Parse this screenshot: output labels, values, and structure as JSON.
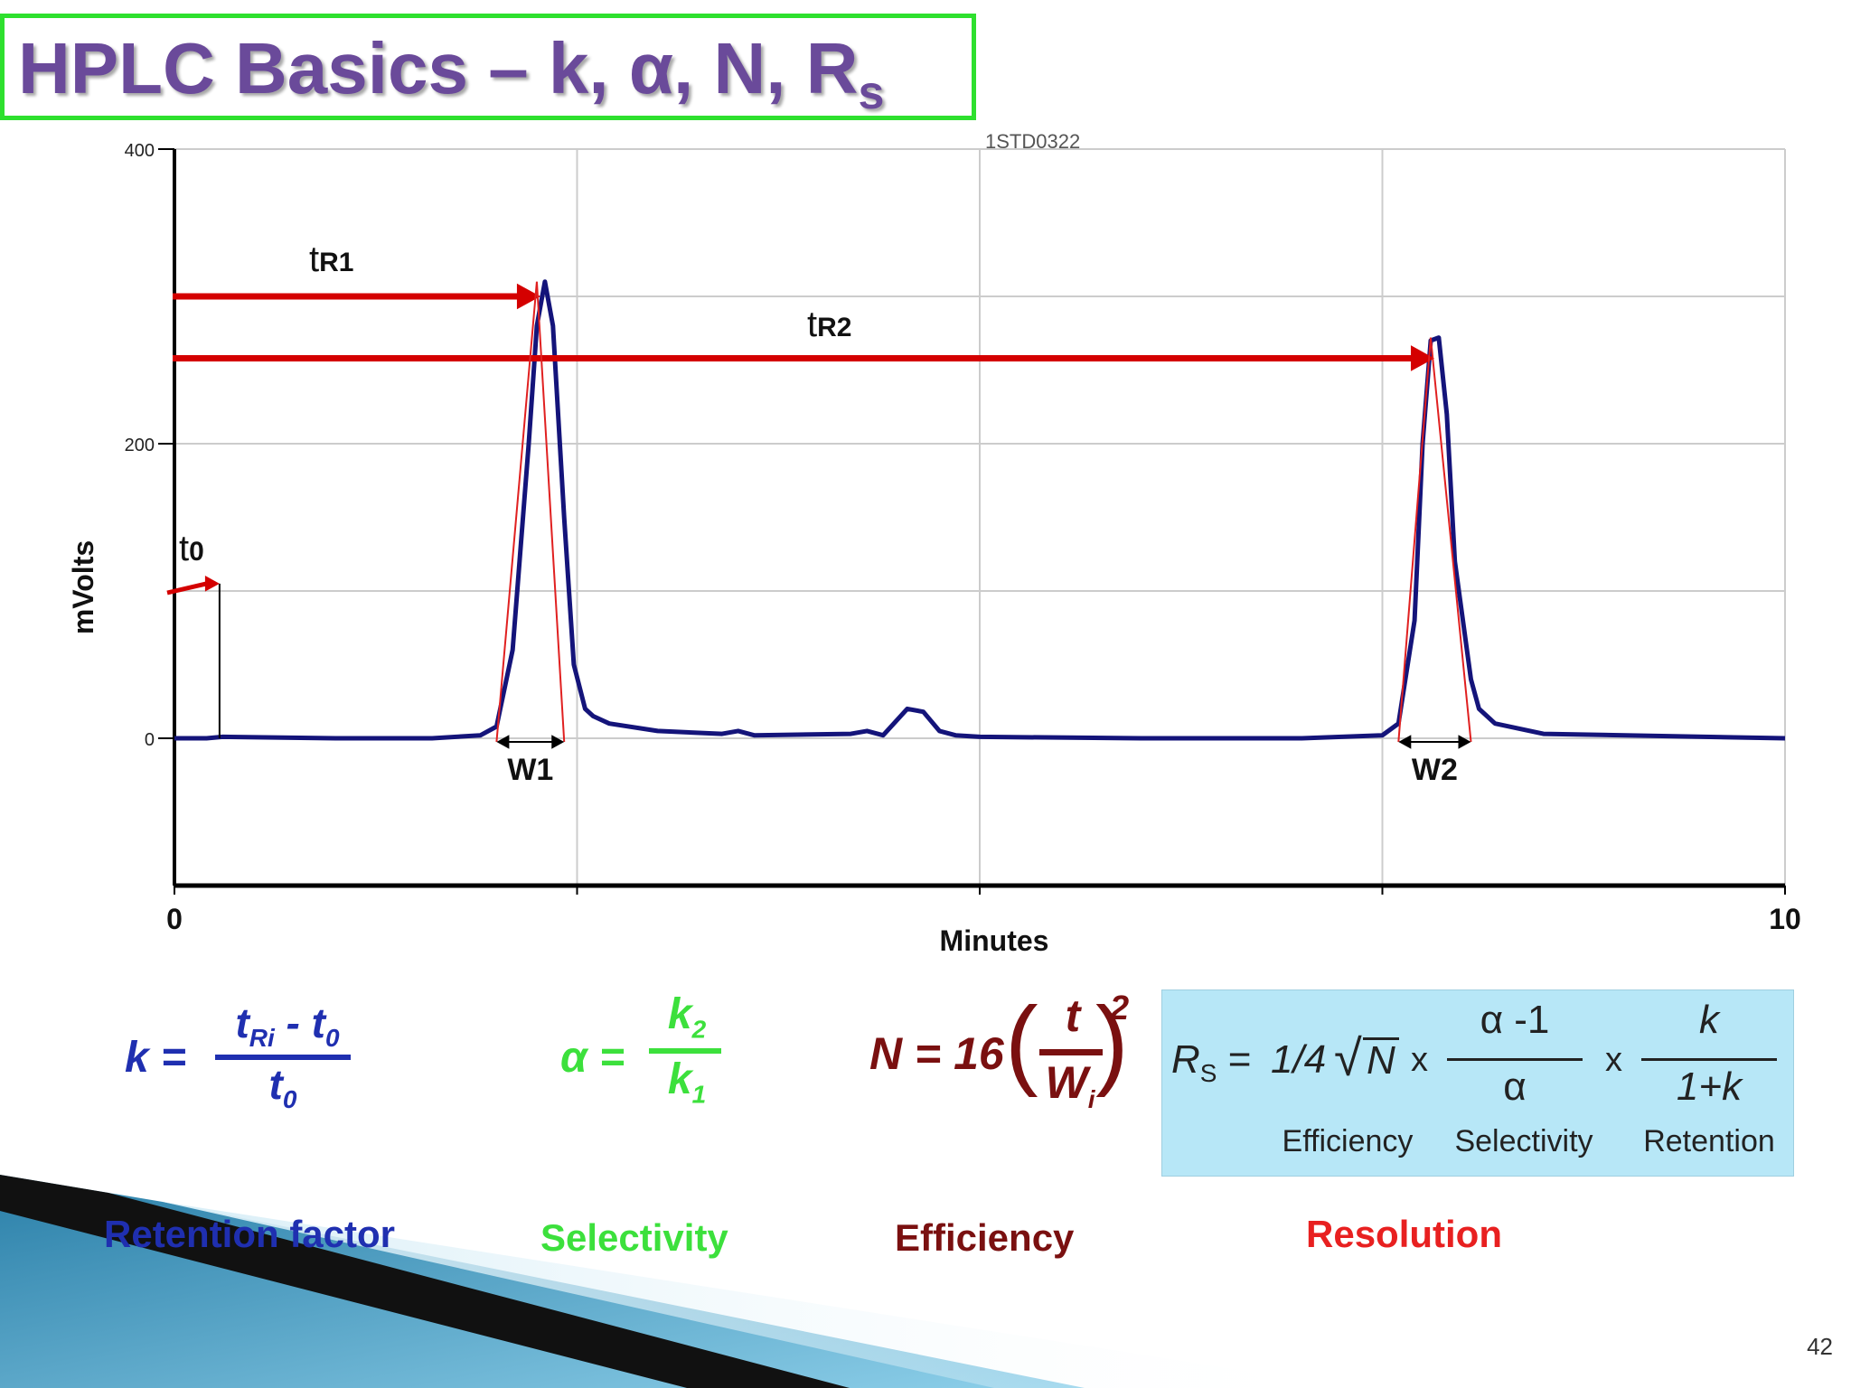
{
  "slide": {
    "title": "HPLC Basics – k, α, N, R",
    "title_sub": "s",
    "page_number": "42"
  },
  "chart_data": {
    "type": "line",
    "header_label": "1STD0322",
    "xlabel": "Minutes",
    "ylabel": "mVolts",
    "xlim": [
      0,
      10
    ],
    "ylim": [
      -100,
      400
    ],
    "x_ticks": [
      "0",
      "10"
    ],
    "y_ticks": [
      "400",
      "200",
      "0"
    ],
    "grid": true,
    "series": [
      {
        "color": "#14147a",
        "x": [
          0,
          0.2,
          0.3,
          1.0,
          1.6,
          1.9,
          2.0,
          2.1,
          2.2,
          2.25,
          2.3,
          2.35,
          2.42,
          2.48,
          2.55,
          2.6,
          2.7,
          3.0,
          3.4,
          3.5,
          3.6,
          4.2,
          4.3,
          4.4,
          4.55,
          4.65,
          4.75,
          4.85,
          5.0,
          6.0,
          7.0,
          7.5,
          7.6,
          7.7,
          7.75,
          7.8,
          7.85,
          7.9,
          7.95,
          8.05,
          8.1,
          8.2,
          8.5,
          10
        ],
        "y": [
          0,
          0,
          1,
          0,
          0,
          2,
          8,
          60,
          200,
          280,
          310,
          280,
          150,
          50,
          20,
          15,
          10,
          5,
          3,
          5,
          2,
          3,
          5,
          2,
          20,
          18,
          5,
          2,
          1,
          0,
          0,
          2,
          10,
          80,
          200,
          270,
          272,
          220,
          120,
          40,
          20,
          10,
          3,
          0
        ]
      }
    ],
    "annotations": [
      {
        "label": "t",
        "sub": "0",
        "x": 0.28
      },
      {
        "label": "t",
        "sub": "R1",
        "x": 2.25,
        "y": 300
      },
      {
        "label": "t",
        "sub": "R2",
        "x": 7.8,
        "y": 258
      },
      {
        "label": "W1",
        "x_start": 2.0,
        "x_end": 2.42
      },
      {
        "label": "W2",
        "x_start": 7.6,
        "x_end": 8.05
      }
    ]
  },
  "formulas": {
    "k": {
      "lhs": "k =",
      "num_t": "t",
      "num_sub": "Ri",
      "num_rest": " - t",
      "num_rest_sub": "0",
      "den_t": "t",
      "den_sub": "0",
      "caption": "Retention factor"
    },
    "alpha": {
      "lhs": "α =",
      "num": "k",
      "num_sub": "2",
      "den": "k",
      "den_sub": "1",
      "caption": "Selectivity"
    },
    "N": {
      "lhs": "N = 16",
      "num": "t",
      "den": "W",
      "den_sub": "i",
      "exp": "2",
      "caption": "Efficiency"
    },
    "Rs": {
      "lhs": "R",
      "lhs_sub": "S",
      "eq": "=",
      "coef": "1/4",
      "sqrt_arg": "N",
      "x1": "x",
      "sel_num": "α -1",
      "sel_den": "α",
      "x2": "x",
      "ret_num": "k",
      "ret_den": "1+k",
      "label_eff": "Efficiency",
      "label_sel": "Selectivity",
      "label_ret": "Retention",
      "caption": "Resolution"
    }
  },
  "colors": {
    "k": "#1f2fb0",
    "alpha": "#3ce03c",
    "N": "#7a1010",
    "Rs_caption": "#e82020",
    "arrows": "#d40000"
  }
}
